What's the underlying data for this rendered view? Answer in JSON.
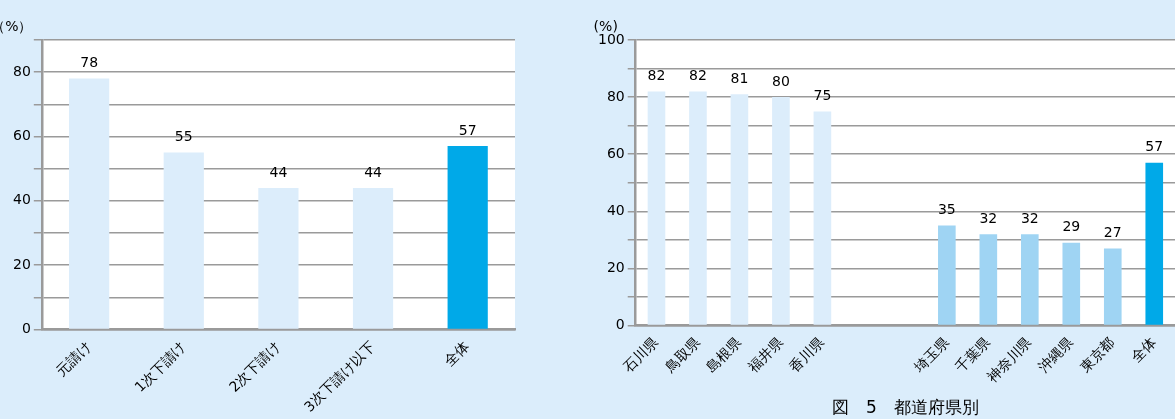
{
  "chart_data": [
    {
      "type": "bar",
      "ylabel": "（%）",
      "categories": [
        "元請け",
        "1次下請け",
        "2次下請け",
        "3次下請け以下",
        "全体"
      ],
      "values": [
        78,
        55,
        44,
        44,
        57
      ],
      "colors": [
        "#dcedfb",
        "#dcedfb",
        "#dcedfb",
        "#dcedfb",
        "#00a9e8"
      ],
      "data_labels": true,
      "grid": "y",
      "legend": false,
      "ylim": [
        0,
        90
      ],
      "yticks": [
        0,
        {
          "value": 10,
          "label": null
        },
        20,
        {
          "value": 30,
          "label": null
        },
        40,
        {
          "value": 50,
          "label": null
        },
        60,
        {
          "value": 70,
          "label": null
        },
        80,
        {
          "value": 90,
          "label": null
        }
      ]
    },
    {
      "type": "bar",
      "ylabel": "(%)",
      "categories": [
        "石川県",
        "鳥取県",
        "島根県",
        "福井県",
        "香川県",
        null,
        null,
        "埼玉県",
        "千葉県",
        "神奈川県",
        "沖縄県",
        "東京都",
        "全体"
      ],
      "values": [
        82,
        82,
        81,
        80,
        75,
        null,
        null,
        35,
        32,
        32,
        29,
        27,
        57
      ],
      "colors": [
        "#dcedfb",
        "#dcedfb",
        "#dcedfb",
        "#dcedfb",
        "#dcedfb",
        "#dcedfb",
        "#dcedfb",
        "#9fd4f3",
        "#9fd4f3",
        "#9fd4f3",
        "#9fd4f3",
        "#9fd4f3",
        "#00a9e8"
      ],
      "data_labels": true,
      "grid": "y",
      "legend": false,
      "ylim": [
        0,
        100
      ],
      "yticks": [
        0,
        {
          "value": 10,
          "label": null
        },
        20,
        {
          "value": 30,
          "label": null
        },
        40,
        {
          "value": 50,
          "label": null
        },
        60,
        {
          "value": 70,
          "label": null
        },
        80,
        {
          "value": 90,
          "label": null
        },
        100
      ],
      "annotations": [
        "図　5　都道府県別"
      ]
    }
  ]
}
